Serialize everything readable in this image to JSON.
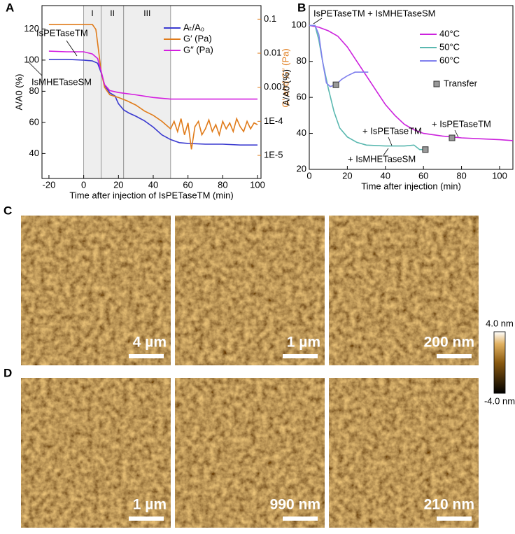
{
  "chart_data": [
    {
      "type": "line",
      "panel": "A",
      "xlabel": "Time after injection of IsPETaseTM (min)",
      "ylabel": "A/A0 (%)",
      "y2label": "G′ and G″ (Pa)",
      "xlim": [
        -24,
        102
      ],
      "xticks": [
        -20,
        0,
        20,
        40,
        60,
        80,
        100
      ],
      "ylim": [
        24,
        135
      ],
      "yticks": [
        40,
        60,
        80,
        100,
        120
      ],
      "y2lim": [
        2.1e-06,
        0.25
      ],
      "y2scale": "log",
      "y2ticks": [
        0.1,
        0.01,
        0.001,
        {
          "value": 0.0001,
          "label": "1E-4"
        },
        {
          "value": 1e-05,
          "label": "1E-5"
        }
      ],
      "legend": "upper right",
      "regions": [
        {
          "label": "I",
          "range": [
            0,
            10
          ]
        },
        {
          "label": "II",
          "range": [
            10,
            23
          ]
        },
        {
          "label": "III",
          "range": [
            23,
            50
          ]
        }
      ],
      "series": [
        {
          "name": "Aₜ/A₀",
          "color": "#3a3ad0",
          "axis": "y",
          "x": [
            -20,
            -10,
            0,
            5,
            8,
            10,
            12,
            15,
            18,
            20,
            23,
            26,
            30,
            35,
            40,
            45,
            50,
            55,
            60,
            70,
            80,
            90,
            100
          ],
          "values": [
            100.5,
            100.5,
            100,
            99.5,
            98,
            92,
            84,
            79,
            77,
            72,
            68,
            66,
            64,
            61,
            57,
            52,
            49,
            47,
            46.5,
            46,
            46,
            45.5,
            45.5
          ]
        },
        {
          "name": "G′ (Pa)",
          "color": "#e07b1a",
          "axis": "y2",
          "x": [
            -20,
            -10,
            0,
            5,
            7,
            8,
            10,
            12,
            15,
            20,
            25,
            30,
            35,
            40,
            45,
            50,
            52,
            54,
            56,
            58,
            60,
            62,
            64,
            66,
            68,
            70,
            72,
            74,
            76,
            78,
            80,
            82,
            84,
            86,
            88,
            90,
            92,
            94,
            96,
            98,
            100
          ],
          "values": [
            0.07,
            0.07,
            0.07,
            0.07,
            0.05,
            0.02,
            0.003,
            0.001,
            0.0006,
            0.0005,
            0.0004,
            0.0003,
            0.0002,
            0.00015,
            0.0001,
            6e-05,
            0.0001,
            5e-05,
            0.00012,
            4e-05,
            9e-05,
            1.5e-05,
            7e-05,
            0.0001,
            4e-05,
            6e-05,
            0.00011,
            5e-05,
            8e-05,
            4e-05,
            0.0001,
            6e-05,
            9e-05,
            5e-05,
            0.00012,
            7e-05,
            5e-05,
            0.0001,
            6e-05,
            9e-05,
            8e-05
          ]
        },
        {
          "name": "G″ (Pa)",
          "color": "#d41ee0",
          "axis": "y2",
          "x": [
            -20,
            -10,
            0,
            5,
            8,
            10,
            12,
            15,
            20,
            30,
            40,
            50,
            60,
            70,
            80,
            90,
            100
          ],
          "values": [
            0.0115,
            0.011,
            0.011,
            0.0095,
            0.007,
            0.003,
            0.0012,
            0.0008,
            0.0007,
            0.0006,
            0.0005,
            0.00045,
            0.00045,
            0.00045,
            0.00045,
            0.00045,
            0.00045
          ]
        }
      ],
      "annotations": [
        "IsPETaseTM",
        "IsMHETaseSM"
      ]
    },
    {
      "type": "line",
      "panel": "B",
      "xlabel": "Time after injection (min)",
      "ylabel": "A/A0 (%)",
      "xlim": [
        0,
        107
      ],
      "xticks": [
        0,
        20,
        40,
        60,
        80,
        100
      ],
      "ylim": [
        20,
        111
      ],
      "yticks": [
        20,
        40,
        60,
        80,
        100
      ],
      "legend": "upper right",
      "series": [
        {
          "name": "40°C",
          "color": "#cc22dd",
          "axis": "y",
          "x": [
            0,
            5,
            10,
            15,
            20,
            25,
            30,
            35,
            40,
            45,
            50,
            55,
            60,
            70,
            75,
            80,
            90,
            100,
            107
          ],
          "values": [
            100,
            99,
            97,
            94,
            88,
            80,
            72,
            64,
            56,
            50,
            45,
            42,
            40,
            38.5,
            38,
            37.5,
            37,
            36.5,
            36
          ]
        },
        {
          "name": "50°C",
          "color": "#5ab8b0",
          "axis": "y",
          "x": [
            0,
            3,
            5,
            7,
            10,
            13,
            16,
            20,
            25,
            30,
            40,
            50,
            55,
            58,
            61
          ],
          "values": [
            100,
            100,
            92,
            80,
            65,
            52,
            43,
            38,
            35,
            33.5,
            33,
            33,
            33.5,
            31,
            31
          ]
        },
        {
          "name": "60°C",
          "color": "#8080ee",
          "axis": "y",
          "x": [
            0,
            3,
            5,
            7,
            9,
            11,
            14,
            17,
            20,
            24,
            28,
            31
          ],
          "values": [
            100,
            100,
            95,
            80,
            68,
            66,
            67,
            70,
            72,
            74,
            74,
            74
          ]
        }
      ],
      "markers": {
        "name": "Transfer",
        "color": "#999999",
        "x": [
          14,
          61,
          75
        ],
        "values": [
          67,
          31,
          37.5
        ]
      },
      "annotations": [
        "IsPETaseTM + IsMHETaseSM",
        "+ IsPETaseTM",
        "+ IsMHETaseSM",
        "+ IsPETaseTM"
      ]
    }
  ],
  "images": [
    {
      "panel": "C",
      "scale_bars": [
        "4 µm",
        "1 µm",
        "200 nm"
      ]
    },
    {
      "panel": "D",
      "scale_bars": [
        "1 µm",
        "990 nm",
        "210 nm"
      ]
    }
  ],
  "colorbar": {
    "max_label": "4.0 nm",
    "min_label": "-4.0 nm"
  }
}
